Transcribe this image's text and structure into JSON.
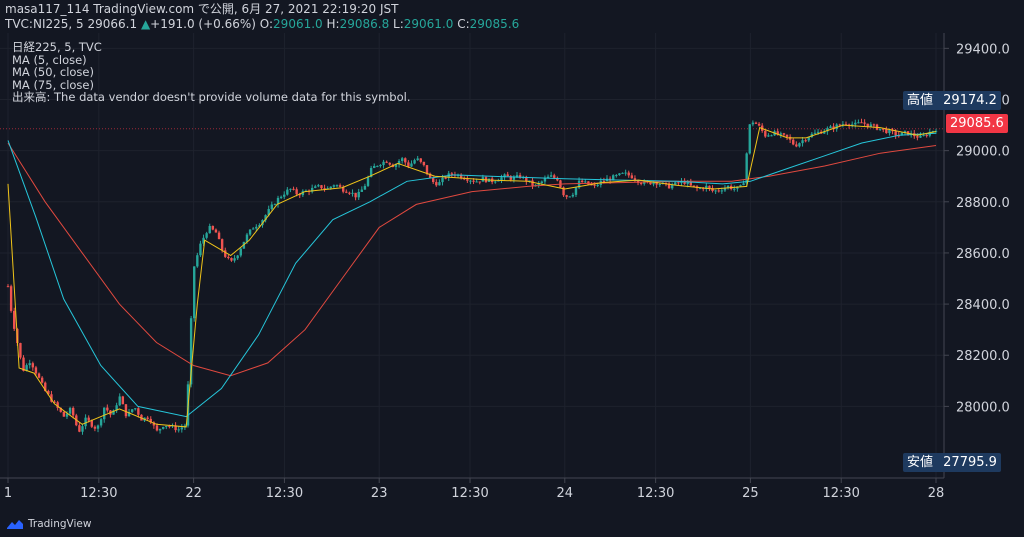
{
  "header": {
    "line1": "masa117_114 TradingView.com で公開, 6月 27, 2021 22:19:20 JST",
    "symbol": "TVC:NI225, 5",
    "last": "29066.1",
    "change": "+191.0 (+0.66%)",
    "o_label": "O:",
    "o_value": "29061.0",
    "h_label": "H:",
    "h_value": "29086.8",
    "l_label": "L:",
    "l_value": "29061.0",
    "c_label": "C:",
    "c_value": "29085.6"
  },
  "legend": [
    "日経225, 5, TVC",
    "MA (5, close)",
    "MA (50, close)",
    "MA (75, close)",
    "出来高: The data vendor doesn't provide volume data for this symbol."
  ],
  "high_tag": {
    "label": "高値",
    "value": "29174.2"
  },
  "low_tag": {
    "label": "安値",
    "value": "27795.9"
  },
  "price_tag": {
    "value": "29085.6"
  },
  "footer": {
    "brand": "TradingView"
  },
  "colors": {
    "up": "#26a69a",
    "down": "#ef5350",
    "ma5": "#f0c419",
    "ma50": "#26c6da",
    "ma75": "#e0493f",
    "price_tag": "#f23645",
    "tag_bg": "#1e3a5f"
  },
  "chart_data": {
    "type": "candlestick",
    "ylim": [
      27720,
      29460
    ],
    "y_ticks": [
      28000,
      28200,
      28400,
      28600,
      28800,
      29000,
      29200,
      29400
    ],
    "y_tick_labels": [
      "28000.0",
      "28200.0",
      "28400.0",
      "28600.0",
      "28800.0",
      "29000.0",
      "29200.0",
      "29400.0"
    ],
    "x_ticks": [
      {
        "label": "1",
        "pos": 0
      },
      {
        "label": "12:30",
        "pos": 0.4894
      },
      {
        "label": "22",
        "pos": 1
      },
      {
        "label": "12:30",
        "pos": 1.4894
      },
      {
        "label": "23",
        "pos": 2
      },
      {
        "label": "12:30",
        "pos": 2.4894
      },
      {
        "label": "24",
        "pos": 3
      },
      {
        "label": "12:30",
        "pos": 3.4894
      },
      {
        "label": "25",
        "pos": 4
      },
      {
        "label": "12:30",
        "pos": 4.4894
      },
      {
        "label": "28",
        "pos": 5
      }
    ],
    "price_path": [
      [
        0.0,
        28470
      ],
      [
        0.02,
        28360
      ],
      [
        0.05,
        28250
      ],
      [
        0.08,
        28140
      ],
      [
        0.12,
        28180
      ],
      [
        0.16,
        28120
      ],
      [
        0.2,
        28060
      ],
      [
        0.25,
        28010
      ],
      [
        0.3,
        27960
      ],
      [
        0.34,
        27990
      ],
      [
        0.38,
        27900
      ],
      [
        0.42,
        27950
      ],
      [
        0.48,
        27910
      ],
      [
        0.52,
        28000
      ],
      [
        0.56,
        27960
      ],
      [
        0.6,
        28040
      ],
      [
        0.64,
        27960
      ],
      [
        0.68,
        28000
      ],
      [
        0.72,
        27950
      ],
      [
        0.76,
        27960
      ],
      [
        0.8,
        27900
      ],
      [
        0.84,
        27930
      ],
      [
        0.88,
        27920
      ],
      [
        0.92,
        27910
      ],
      [
        0.96,
        27930
      ],
      [
        1.0,
        28540
      ],
      [
        1.04,
        28640
      ],
      [
        1.08,
        28700
      ],
      [
        1.12,
        28680
      ],
      [
        1.16,
        28600
      ],
      [
        1.2,
        28560
      ],
      [
        1.24,
        28600
      ],
      [
        1.28,
        28660
      ],
      [
        1.32,
        28700
      ],
      [
        1.36,
        28720
      ],
      [
        1.4,
        28760
      ],
      [
        1.44,
        28800
      ],
      [
        1.48,
        28830
      ],
      [
        1.52,
        28850
      ],
      [
        1.56,
        28830
      ],
      [
        1.6,
        28840
      ],
      [
        1.64,
        28850
      ],
      [
        1.68,
        28860
      ],
      [
        1.72,
        28850
      ],
      [
        1.76,
        28870
      ],
      [
        1.8,
        28850
      ],
      [
        1.84,
        28840
      ],
      [
        1.88,
        28820
      ],
      [
        1.92,
        28860
      ],
      [
        1.96,
        28930
      ],
      [
        2.0,
        28950
      ],
      [
        2.04,
        28960
      ],
      [
        2.08,
        28940
      ],
      [
        2.12,
        28970
      ],
      [
        2.16,
        28940
      ],
      [
        2.2,
        28970
      ],
      [
        2.24,
        28940
      ],
      [
        2.28,
        28880
      ],
      [
        2.32,
        28870
      ],
      [
        2.36,
        28900
      ],
      [
        2.4,
        28910
      ],
      [
        2.44,
        28900
      ],
      [
        2.48,
        28890
      ],
      [
        2.52,
        28880
      ],
      [
        2.56,
        28890
      ],
      [
        2.6,
        28880
      ],
      [
        2.64,
        28890
      ],
      [
        2.68,
        28900
      ],
      [
        2.72,
        28890
      ],
      [
        2.76,
        28900
      ],
      [
        2.8,
        28880
      ],
      [
        2.84,
        28860
      ],
      [
        2.88,
        28880
      ],
      [
        2.92,
        28900
      ],
      [
        2.96,
        28890
      ],
      [
        3.0,
        28820
      ],
      [
        3.04,
        28830
      ],
      [
        3.08,
        28880
      ],
      [
        3.12,
        28870
      ],
      [
        3.16,
        28860
      ],
      [
        3.2,
        28880
      ],
      [
        3.24,
        28890
      ],
      [
        3.28,
        28900
      ],
      [
        3.32,
        28910
      ],
      [
        3.36,
        28900
      ],
      [
        3.4,
        28880
      ],
      [
        3.44,
        28870
      ],
      [
        3.48,
        28880
      ],
      [
        3.52,
        28870
      ],
      [
        3.56,
        28860
      ],
      [
        3.6,
        28870
      ],
      [
        3.64,
        28880
      ],
      [
        3.68,
        28860
      ],
      [
        3.72,
        28850
      ],
      [
        3.76,
        28860
      ],
      [
        3.8,
        28840
      ],
      [
        3.84,
        28850
      ],
      [
        3.88,
        28860
      ],
      [
        3.92,
        28850
      ],
      [
        3.96,
        28860
      ],
      [
        4.0,
        29120
      ],
      [
        4.04,
        29100
      ],
      [
        4.08,
        29060
      ],
      [
        4.12,
        29070
      ],
      [
        4.16,
        29060
      ],
      [
        4.2,
        29050
      ],
      [
        4.24,
        29020
      ],
      [
        4.28,
        29040
      ],
      [
        4.32,
        29060
      ],
      [
        4.36,
        29070
      ],
      [
        4.4,
        29080
      ],
      [
        4.44,
        29090
      ],
      [
        4.48,
        29100
      ],
      [
        4.52,
        29110
      ],
      [
        4.56,
        29100
      ],
      [
        4.6,
        29110
      ],
      [
        4.64,
        29100
      ],
      [
        4.68,
        29090
      ],
      [
        4.72,
        29080
      ],
      [
        4.76,
        29070
      ],
      [
        4.8,
        29060
      ],
      [
        4.84,
        29070
      ],
      [
        4.88,
        29060
      ],
      [
        4.92,
        29050
      ],
      [
        4.96,
        29070
      ],
      [
        5.0,
        29086
      ]
    ],
    "ma5": [
      [
        0.0,
        28870
      ],
      [
        0.06,
        28150
      ],
      [
        0.14,
        28130
      ],
      [
        0.25,
        28010
      ],
      [
        0.4,
        27930
      ],
      [
        0.6,
        27990
      ],
      [
        0.8,
        27930
      ],
      [
        0.96,
        27920
      ],
      [
        1.02,
        28400
      ],
      [
        1.06,
        28650
      ],
      [
        1.2,
        28590
      ],
      [
        1.3,
        28650
      ],
      [
        1.45,
        28790
      ],
      [
        1.6,
        28840
      ],
      [
        1.8,
        28855
      ],
      [
        1.95,
        28900
      ],
      [
        2.1,
        28950
      ],
      [
        2.3,
        28900
      ],
      [
        2.6,
        28885
      ],
      [
        2.8,
        28880
      ],
      [
        3.0,
        28850
      ],
      [
        3.2,
        28875
      ],
      [
        3.4,
        28885
      ],
      [
        3.6,
        28865
      ],
      [
        3.8,
        28850
      ],
      [
        3.98,
        28860
      ],
      [
        4.05,
        29090
      ],
      [
        4.2,
        29050
      ],
      [
        4.3,
        29050
      ],
      [
        4.5,
        29100
      ],
      [
        4.7,
        29090
      ],
      [
        4.9,
        29060
      ],
      [
        5.0,
        29075
      ]
    ],
    "ma50": [
      [
        0.0,
        29040
      ],
      [
        0.15,
        28740
      ],
      [
        0.3,
        28420
      ],
      [
        0.5,
        28160
      ],
      [
        0.7,
        28000
      ],
      [
        0.96,
        27960
      ],
      [
        1.15,
        28070
      ],
      [
        1.35,
        28280
      ],
      [
        1.55,
        28560
      ],
      [
        1.75,
        28730
      ],
      [
        1.95,
        28800
      ],
      [
        2.15,
        28880
      ],
      [
        2.4,
        28905
      ],
      [
        2.6,
        28900
      ],
      [
        2.8,
        28895
      ],
      [
        3.0,
        28890
      ],
      [
        3.3,
        28885
      ],
      [
        3.6,
        28880
      ],
      [
        3.85,
        28870
      ],
      [
        4.0,
        28880
      ],
      [
        4.2,
        28930
      ],
      [
        4.4,
        28980
      ],
      [
        4.6,
        29030
      ],
      [
        4.8,
        29060
      ],
      [
        5.0,
        29068
      ]
    ],
    "ma75": [
      [
        0.0,
        29030
      ],
      [
        0.2,
        28800
      ],
      [
        0.4,
        28600
      ],
      [
        0.6,
        28400
      ],
      [
        0.8,
        28250
      ],
      [
        1.0,
        28160
      ],
      [
        1.2,
        28120
      ],
      [
        1.4,
        28170
      ],
      [
        1.6,
        28300
      ],
      [
        1.8,
        28500
      ],
      [
        2.0,
        28700
      ],
      [
        2.2,
        28790
      ],
      [
        2.5,
        28840
      ],
      [
        2.8,
        28860
      ],
      [
        3.0,
        28870
      ],
      [
        3.3,
        28875
      ],
      [
        3.6,
        28880
      ],
      [
        3.9,
        28880
      ],
      [
        4.1,
        28900
      ],
      [
        4.4,
        28940
      ],
      [
        4.7,
        28990
      ],
      [
        5.0,
        29020
      ]
    ]
  }
}
